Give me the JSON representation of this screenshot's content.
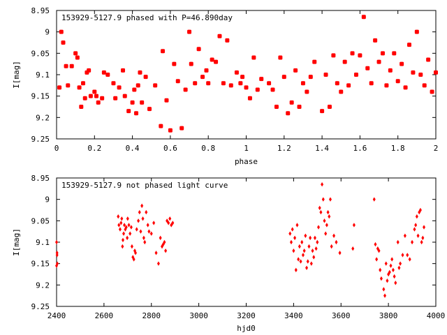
{
  "chart_data": [
    {
      "type": "scatter",
      "title": "153929-5127.9 phased with P=46.890day",
      "xlabel": "phase",
      "ylabel": "I[mag]",
      "xlim": [
        0,
        2
      ],
      "ylim": [
        8.95,
        9.25
      ],
      "y_inverted": true,
      "grid": false,
      "marker_color": "#ff0000",
      "marker_shape": "square-dot",
      "xticks": [
        "0",
        "0.2",
        "0.4",
        "0.6",
        "0.8",
        "1",
        "1.2",
        "1.4",
        "1.6",
        "1.8",
        "2"
      ],
      "yticks": [
        "8.95",
        "9",
        "9.05",
        "9.1",
        "9.15",
        "9.2",
        "9.25"
      ],
      "x": [
        0.015,
        0.025,
        0.035,
        0.05,
        0.06,
        0.08,
        0.1,
        0.11,
        0.12,
        0.13,
        0.14,
        0.15,
        0.16,
        0.17,
        0.18,
        0.2,
        0.21,
        0.22,
        0.24,
        0.25,
        0.27,
        0.3,
        0.31,
        0.33,
        0.35,
        0.36,
        0.38,
        0.4,
        0.41,
        0.42,
        0.43,
        0.44,
        0.45,
        0.47,
        0.49,
        0.52,
        0.55,
        0.56,
        0.58,
        0.6,
        0.62,
        0.64,
        0.66,
        0.68,
        0.7,
        0.71,
        0.73,
        0.75,
        0.77,
        0.79,
        0.8,
        0.82,
        0.84,
        0.86,
        0.88,
        0.9,
        0.92,
        0.95,
        0.97,
        0.98,
        1.0,
        1.02,
        1.04,
        1.06,
        1.08,
        1.12,
        1.14,
        1.16,
        1.18,
        1.2,
        1.22,
        1.24,
        1.26,
        1.28,
        1.3,
        1.32,
        1.34,
        1.36,
        1.4,
        1.42,
        1.44,
        1.46,
        1.48,
        1.5,
        1.52,
        1.54,
        1.56,
        1.58,
        1.6,
        1.62,
        1.64,
        1.66,
        1.68,
        1.7,
        1.72,
        1.74,
        1.76,
        1.78,
        1.8,
        1.82,
        1.84,
        1.86,
        1.88,
        1.9,
        1.92,
        1.94,
        1.96,
        1.98,
        2.0
      ],
      "y": [
        9.13,
        9.0,
        9.025,
        9.08,
        9.125,
        9.08,
        9.05,
        9.06,
        9.13,
        9.175,
        9.12,
        9.155,
        9.095,
        9.09,
        9.15,
        9.14,
        9.15,
        9.165,
        9.155,
        9.095,
        9.1,
        9.12,
        9.155,
        9.13,
        9.09,
        9.15,
        9.185,
        9.165,
        9.135,
        9.19,
        9.125,
        9.095,
        9.165,
        9.105,
        9.18,
        9.125,
        9.22,
        9.045,
        9.16,
        9.23,
        9.075,
        9.115,
        9.225,
        9.135,
        9.0,
        9.075,
        9.12,
        9.04,
        9.105,
        9.09,
        9.12,
        9.065,
        9.07,
        9.01,
        9.12,
        9.02,
        9.125,
        9.095,
        9.12,
        9.105,
        9.13,
        9.155,
        9.06,
        9.135,
        9.11,
        9.12,
        9.135,
        9.175,
        9.06,
        9.105,
        9.19,
        9.165,
        9.09,
        9.175,
        9.12,
        9.14,
        9.105,
        9.07,
        9.185,
        9.1,
        9.175,
        9.055,
        9.12,
        9.14,
        9.07,
        9.125,
        9.05,
        9.1,
        9.055,
        8.965,
        9.085,
        9.12,
        9.02,
        9.07,
        9.05,
        9.125,
        9.09,
        9.05,
        9.115,
        9.075,
        9.13,
        9.03,
        9.095,
        9.0,
        9.1,
        9.125,
        9.065,
        9.14,
        9.095
      ]
    },
    {
      "type": "scatter",
      "title": "153929-5127.9 not phased light curve",
      "xlabel": "hjd0",
      "ylabel": "I[mag]",
      "xlim": [
        2400,
        4000
      ],
      "ylim": [
        8.95,
        9.25
      ],
      "y_inverted": true,
      "grid": false,
      "marker_color": "#ff0000",
      "marker_shape": "diamond",
      "xticks": [
        "2400",
        "2600",
        "2800",
        "3000",
        "3200",
        "3400",
        "3600",
        "3800",
        "4000"
      ],
      "yticks": [
        "8.95",
        "9",
        "9.05",
        "9.1",
        "9.15",
        "9.2",
        "9.25"
      ],
      "x": [
        2400,
        2400,
        2402,
        2402,
        2403,
        2660,
        2663,
        2668,
        2672,
        2675,
        2678,
        2680,
        2683,
        2686,
        2690,
        2694,
        2698,
        2700,
        2705,
        2710,
        2715,
        2718,
        2722,
        2726,
        2730,
        2733,
        2738,
        2745,
        2750,
        2755,
        2760,
        2764,
        2768,
        2772,
        2778,
        2785,
        2790,
        2800,
        2810,
        2820,
        2830,
        2838,
        2845,
        2850,
        2855,
        2860,
        2866,
        2872,
        2878,
        2884,
        2890,
        3385,
        3390,
        3395,
        3400,
        3405,
        3410,
        3415,
        3420,
        3425,
        3430,
        3435,
        3440,
        3445,
        3450,
        3455,
        3460,
        3465,
        3470,
        3475,
        3480,
        3485,
        3490,
        3495,
        3500,
        3505,
        3510,
        3515,
        3520,
        3525,
        3530,
        3535,
        3540,
        3545,
        3550,
        3555,
        3560,
        3570,
        3580,
        3595,
        3650,
        3655,
        3740,
        3745,
        3750,
        3755,
        3760,
        3765,
        3770,
        3780,
        3785,
        3790,
        3795,
        3800,
        3805,
        3810,
        3815,
        3820,
        3825,
        3830,
        3840,
        3845,
        3850,
        3860,
        3870,
        3880,
        3890,
        3900,
        3910,
        3915,
        3920,
        3925,
        3930,
        3935,
        3940,
        3945,
        3950
      ],
      "y": [
        9.1,
        9.155,
        9.125,
        9.13,
        9.15,
        9.04,
        9.06,
        9.07,
        9.055,
        9.045,
        9.11,
        9.095,
        9.08,
        9.06,
        9.07,
        9.065,
        9.09,
        9.045,
        9.06,
        9.08,
        9.065,
        9.11,
        9.135,
        9.14,
        9.12,
        9.125,
        9.07,
        9.05,
        9.03,
        9.075,
        9.015,
        9.045,
        9.09,
        9.1,
        9.03,
        9.06,
        9.075,
        9.08,
        9.055,
        9.125,
        9.15,
        9.09,
        9.11,
        9.105,
        9.1,
        9.12,
        9.05,
        9.055,
        9.045,
        9.06,
        9.055,
        9.08,
        9.1,
        9.07,
        9.12,
        9.09,
        9.165,
        9.06,
        9.14,
        9.11,
        9.145,
        9.1,
        9.13,
        9.12,
        9.085,
        9.16,
        9.145,
        9.11,
        9.09,
        9.15,
        9.12,
        9.135,
        9.09,
        9.115,
        9.1,
        9.065,
        9.02,
        9.03,
        8.965,
        9.0,
        9.05,
        9.08,
        9.06,
        9.03,
        9.04,
        9.0,
        9.11,
        9.085,
        9.1,
        9.125,
        9.115,
        9.06,
        9.0,
        9.105,
        9.14,
        9.115,
        9.12,
        9.165,
        9.185,
        9.21,
        9.225,
        9.15,
        9.19,
        9.175,
        9.17,
        9.155,
        9.14,
        9.165,
        9.18,
        9.195,
        9.1,
        9.16,
        9.15,
        9.13,
        9.085,
        9.13,
        9.14,
        9.1,
        9.07,
        9.06,
        9.04,
        9.085,
        9.03,
        9.025,
        9.1,
        9.09,
        9.065
      ]
    }
  ]
}
